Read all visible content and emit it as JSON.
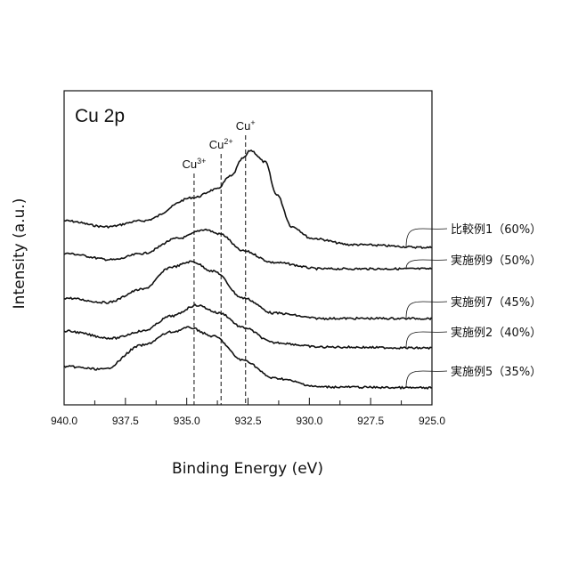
{
  "chart_data": {
    "type": "line",
    "title": "Cu 2p",
    "xlabel": "Binding Energy (eV)",
    "ylabel": "Intensity (a.u.)",
    "xlim": [
      940.0,
      925.0
    ],
    "ylim": [
      0,
      100
    ],
    "x_ticks": [
      "940.0",
      "937.5",
      "935.0",
      "932.5",
      "930.0",
      "927.5",
      "925.0"
    ],
    "x_tick_values": [
      940.0,
      937.5,
      935.0,
      932.5,
      930.0,
      927.5,
      925.0
    ],
    "minor_tick_step": 1.25,
    "grid": false,
    "reference_lines": [
      {
        "label": "Cu",
        "sup": "3+",
        "x": 934.7
      },
      {
        "label": "Cu",
        "sup": "2+",
        "x": 933.6
      },
      {
        "label": "Cu",
        "sup": "+",
        "x": 932.6
      }
    ],
    "legend_placement": "right",
    "series": [
      {
        "name": "比較例1（60%）",
        "x": [
          940,
          938.25,
          936.8,
          934.7,
          933.8,
          933.2,
          932.7,
          932.4,
          931.8,
          931.35,
          930.7,
          929.9,
          928.3,
          925
        ],
        "y": [
          58.6,
          56.7,
          58.6,
          66,
          68.6,
          72.8,
          78.5,
          81,
          77.3,
          67.1,
          56.7,
          53,
          51,
          50.1
        ]
      },
      {
        "name": "実施例9（50%）",
        "x": [
          940,
          938,
          936.8,
          935.35,
          934.25,
          933.65,
          932.7,
          931.45,
          929.5,
          925
        ],
        "y": [
          48.2,
          46.2,
          48.2,
          53,
          55.8,
          54.4,
          49,
          45.3,
          43.3,
          43.3
        ]
      },
      {
        "name": "実施例7（45%）",
        "x": [
          940,
          938.25,
          936.8,
          935.6,
          934.8,
          933.9,
          932.7,
          931.45,
          929.5,
          925
        ],
        "y": [
          34,
          32.6,
          36.8,
          43.9,
          45.6,
          42.5,
          34,
          29.2,
          27.5,
          27.5
        ]
      },
      {
        "name": "実施例2（40%）",
        "x": [
          940,
          938,
          936.8,
          935.6,
          934.6,
          933.65,
          932.7,
          931.45,
          929.5,
          925
        ],
        "y": [
          23.5,
          21.2,
          23.5,
          28.3,
          31.7,
          29.2,
          24.6,
          19.8,
          18.4,
          18.1
        ]
      },
      {
        "name": "実施例5（35%）",
        "x": [
          940,
          938.4,
          936.8,
          935.6,
          934.9,
          933.9,
          932.7,
          931.45,
          929.5,
          925
        ],
        "y": [
          12.2,
          11.3,
          19,
          23.2,
          24.6,
          21.8,
          14.2,
          8.5,
          5.7,
          5.4
        ]
      }
    ]
  }
}
